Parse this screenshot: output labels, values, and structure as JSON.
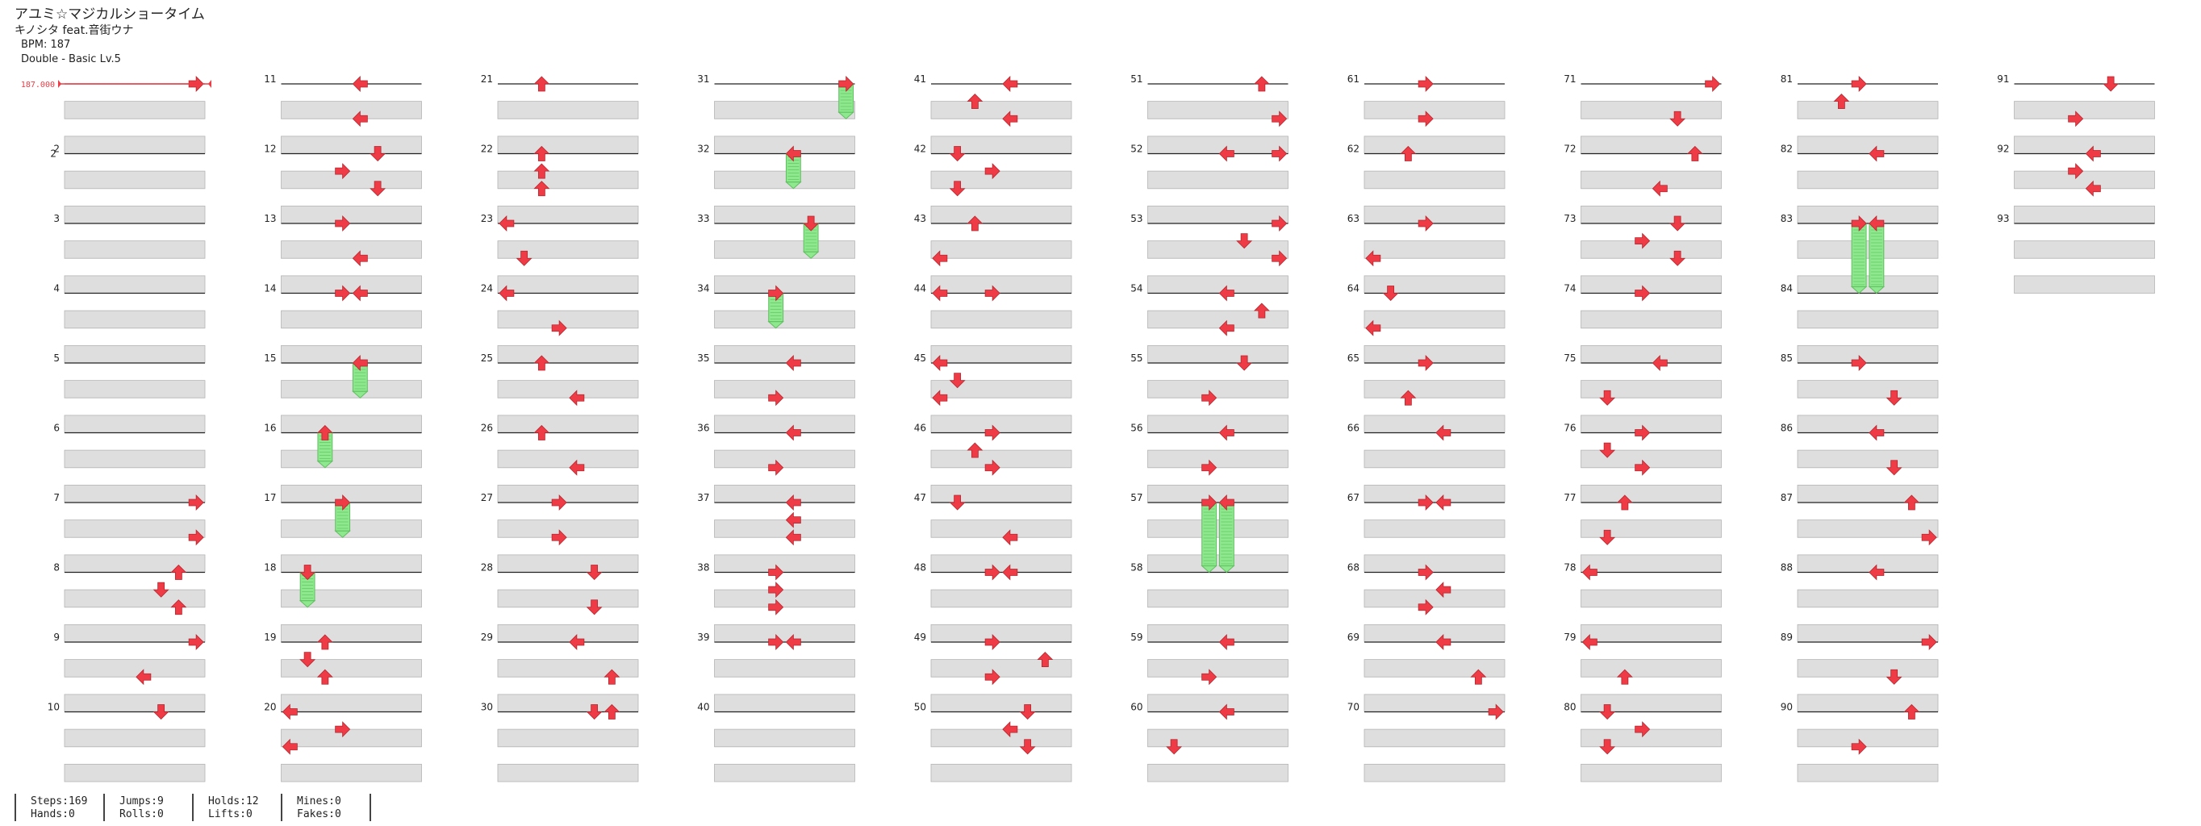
{
  "song": {
    "title": "アユミ☆マジカルショータイム",
    "artist": "キノシタ feat.音街ウナ",
    "bpm_label": "BPM: 187",
    "difficulty": "Double - Basic Lv.5"
  },
  "bpm_marker": "187.000",
  "arrow_color": "#ef3b45",
  "hold_color": "#8ee88e",
  "measure_count": 93,
  "notes": [
    [
      1,
      0,
      "R",
      8
    ],
    [
      7,
      0,
      "R",
      8
    ],
    [
      7,
      2,
      "R",
      8
    ],
    [
      8,
      0,
      "U",
      7
    ],
    [
      8,
      1,
      "D",
      6
    ],
    [
      8,
      2,
      "U",
      7
    ],
    [
      9,
      0,
      "R",
      8
    ],
    [
      9,
      2,
      "L",
      5
    ],
    [
      10,
      0,
      "D",
      6
    ],
    [
      11,
      0,
      "L",
      5
    ],
    [
      11,
      2,
      "L",
      5
    ],
    [
      12,
      0,
      "D",
      6
    ],
    [
      12,
      1,
      "R",
      4
    ],
    [
      12,
      2,
      "D",
      6
    ],
    [
      13,
      0,
      "R",
      4
    ],
    [
      13,
      2,
      "L",
      5
    ],
    [
      14,
      0,
      "R",
      4
    ],
    [
      14,
      0,
      "L",
      5
    ],
    [
      15,
      0,
      "L",
      5
    ],
    [
      16,
      0,
      "U",
      3
    ],
    [
      17,
      0,
      "R",
      4
    ],
    [
      18,
      0,
      "D",
      2
    ],
    [
      19,
      0,
      "U",
      3
    ],
    [
      19,
      1,
      "D",
      2
    ],
    [
      19,
      2,
      "U",
      3
    ],
    [
      20,
      0,
      "L",
      1
    ],
    [
      20,
      1,
      "R",
      4
    ],
    [
      20,
      2,
      "L",
      1
    ],
    [
      21,
      0,
      "U",
      3
    ],
    [
      22,
      0,
      "U",
      3
    ],
    [
      22,
      1,
      "U",
      3
    ],
    [
      22,
      2,
      "U",
      3
    ],
    [
      23,
      0,
      "L",
      1
    ],
    [
      23,
      2,
      "D",
      2
    ],
    [
      24,
      0,
      "L",
      1
    ],
    [
      24,
      2,
      "R",
      4
    ],
    [
      25,
      0,
      "U",
      3
    ],
    [
      25,
      2,
      "L",
      5
    ],
    [
      26,
      0,
      "U",
      3
    ],
    [
      26,
      2,
      "L",
      5
    ],
    [
      27,
      0,
      "R",
      4
    ],
    [
      27,
      2,
      "R",
      4
    ],
    [
      28,
      0,
      "D",
      6
    ],
    [
      28,
      2,
      "D",
      6
    ],
    [
      29,
      0,
      "L",
      5
    ],
    [
      29,
      2,
      "U",
      7
    ],
    [
      30,
      0,
      "D",
      6
    ],
    [
      30,
      0,
      "U",
      7
    ],
    [
      31,
      0,
      "R",
      8
    ],
    [
      32,
      0,
      "L",
      5
    ],
    [
      33,
      0,
      "D",
      6
    ],
    [
      34,
      0,
      "R",
      4
    ],
    [
      35,
      0,
      "L",
      5
    ],
    [
      35,
      2,
      "R",
      4
    ],
    [
      36,
      0,
      "L",
      5
    ],
    [
      36,
      2,
      "R",
      4
    ],
    [
      37,
      0,
      "L",
      5
    ],
    [
      37,
      1,
      "L",
      5
    ],
    [
      37,
      2,
      "L",
      5
    ],
    [
      38,
      0,
      "R",
      4
    ],
    [
      38,
      1,
      "R",
      4
    ],
    [
      38,
      2,
      "R",
      4
    ],
    [
      39,
      0,
      "R",
      4
    ],
    [
      39,
      0,
      "L",
      5
    ],
    [
      41,
      0,
      "L",
      5
    ],
    [
      41,
      1,
      "U",
      3
    ],
    [
      41,
      2,
      "L",
      5
    ],
    [
      42,
      0,
      "D",
      2
    ],
    [
      42,
      1,
      "R",
      4
    ],
    [
      42,
      2,
      "D",
      2
    ],
    [
      43,
      0,
      "U",
      3
    ],
    [
      43,
      2,
      "L",
      1
    ],
    [
      44,
      0,
      "L",
      1
    ],
    [
      44,
      0,
      "R",
      4
    ],
    [
      45,
      0,
      "L",
      1
    ],
    [
      45,
      1,
      "D",
      2
    ],
    [
      45,
      2,
      "L",
      1
    ],
    [
      46,
      0,
      "R",
      4
    ],
    [
      46,
      1,
      "U",
      3
    ],
    [
      46,
      2,
      "R",
      4
    ],
    [
      47,
      0,
      "D",
      2
    ],
    [
      47,
      2,
      "L",
      5
    ],
    [
      48,
      0,
      "R",
      4
    ],
    [
      48,
      0,
      "L",
      5
    ],
    [
      49,
      0,
      "R",
      4
    ],
    [
      49,
      1,
      "U",
      7
    ],
    [
      49,
      2,
      "R",
      4
    ],
    [
      50,
      0,
      "D",
      6
    ],
    [
      50,
      1,
      "L",
      5
    ],
    [
      50,
      2,
      "D",
      6
    ],
    [
      51,
      0,
      "U",
      7
    ],
    [
      51,
      2,
      "R",
      8
    ],
    [
      52,
      0,
      "L",
      5
    ],
    [
      52,
      0,
      "R",
      8
    ],
    [
      53,
      0,
      "R",
      8
    ],
    [
      53,
      1,
      "D",
      6
    ],
    [
      53,
      2,
      "R",
      8
    ],
    [
      54,
      0,
      "L",
      5
    ],
    [
      54,
      1,
      "U",
      7
    ],
    [
      54,
      2,
      "L",
      5
    ],
    [
      55,
      0,
      "D",
      6
    ],
    [
      55,
      2,
      "R",
      4
    ],
    [
      56,
      0,
      "L",
      5
    ],
    [
      56,
      2,
      "R",
      4
    ],
    [
      57,
      0,
      "R",
      4
    ],
    [
      57,
      0,
      "L",
      5
    ],
    [
      59,
      0,
      "L",
      5
    ],
    [
      59,
      2,
      "R",
      4
    ],
    [
      60,
      0,
      "L",
      5
    ],
    [
      60,
      2,
      "D",
      2
    ],
    [
      61,
      0,
      "R",
      4
    ],
    [
      61,
      2,
      "R",
      4
    ],
    [
      62,
      0,
      "U",
      3
    ],
    [
      63,
      0,
      "R",
      4
    ],
    [
      63,
      2,
      "L",
      1
    ],
    [
      64,
      0,
      "D",
      2
    ],
    [
      64,
      2,
      "L",
      1
    ],
    [
      65,
      0,
      "R",
      4
    ],
    [
      65,
      2,
      "U",
      3
    ],
    [
      66,
      0,
      "L",
      5
    ],
    [
      67,
      0,
      "R",
      4
    ],
    [
      67,
      0,
      "L",
      5
    ],
    [
      68,
      0,
      "R",
      4
    ],
    [
      68,
      1,
      "L",
      5
    ],
    [
      68,
      2,
      "R",
      4
    ],
    [
      69,
      0,
      "L",
      5
    ],
    [
      69,
      2,
      "U",
      7
    ],
    [
      70,
      0,
      "R",
      8
    ],
    [
      71,
      0,
      "R",
      8
    ],
    [
      71,
      2,
      "D",
      6
    ],
    [
      72,
      0,
      "U",
      7
    ],
    [
      72,
      2,
      "L",
      5
    ],
    [
      73,
      0,
      "D",
      6
    ],
    [
      73,
      1,
      "R",
      4
    ],
    [
      73,
      2,
      "D",
      6
    ],
    [
      74,
      0,
      "R",
      4
    ],
    [
      75,
      0,
      "L",
      5
    ],
    [
      75,
      2,
      "D",
      2
    ],
    [
      76,
      0,
      "R",
      4
    ],
    [
      76,
      1,
      "D",
      2
    ],
    [
      76,
      2,
      "R",
      4
    ],
    [
      77,
      0,
      "U",
      3
    ],
    [
      77,
      2,
      "D",
      2
    ],
    [
      78,
      0,
      "L",
      1
    ],
    [
      79,
      0,
      "L",
      1
    ],
    [
      79,
      2,
      "U",
      3
    ],
    [
      80,
      0,
      "D",
      2
    ],
    [
      80,
      1,
      "R",
      4
    ],
    [
      80,
      2,
      "D",
      2
    ],
    [
      81,
      0,
      "R",
      4
    ],
    [
      81,
      1,
      "U",
      3
    ],
    [
      82,
      0,
      "L",
      5
    ],
    [
      83,
      0,
      "R",
      4
    ],
    [
      83,
      0,
      "L",
      5
    ],
    [
      85,
      0,
      "R",
      4
    ],
    [
      85,
      2,
      "D",
      6
    ],
    [
      86,
      0,
      "L",
      5
    ],
    [
      86,
      2,
      "D",
      6
    ],
    [
      87,
      0,
      "U",
      7
    ],
    [
      87,
      2,
      "R",
      8
    ],
    [
      88,
      0,
      "L",
      5
    ],
    [
      89,
      0,
      "R",
      8
    ],
    [
      89,
      2,
      "D",
      6
    ],
    [
      90,
      0,
      "U",
      7
    ],
    [
      90,
      2,
      "R",
      4
    ],
    [
      91,
      0,
      "D",
      6
    ],
    [
      91,
      2,
      "R",
      4
    ],
    [
      92,
      0,
      "L",
      5
    ],
    [
      92,
      1,
      "R",
      4
    ],
    [
      92,
      2,
      "L",
      5
    ]
  ],
  "holds": [
    [
      15,
      0,
      5,
      2
    ],
    [
      16,
      0,
      3,
      2
    ],
    [
      17,
      0,
      4,
      2
    ],
    [
      18,
      0,
      2,
      2
    ],
    [
      31,
      0,
      8,
      2
    ],
    [
      32,
      0,
      5,
      2
    ],
    [
      33,
      0,
      6,
      2
    ],
    [
      34,
      0,
      4,
      2
    ],
    [
      57,
      0,
      4,
      4
    ],
    [
      57,
      0,
      5,
      4
    ],
    [
      83,
      0,
      4,
      4
    ],
    [
      83,
      0,
      5,
      4
    ]
  ],
  "stats": {
    "steps": "Steps:169",
    "hands": "Hands:0",
    "jumps": "Jumps:9",
    "rolls": "Rolls:0",
    "holds": "Holds:12",
    "lifts": "Lifts:0",
    "mines": "Mines:0",
    "fakes": "Fakes:0"
  }
}
